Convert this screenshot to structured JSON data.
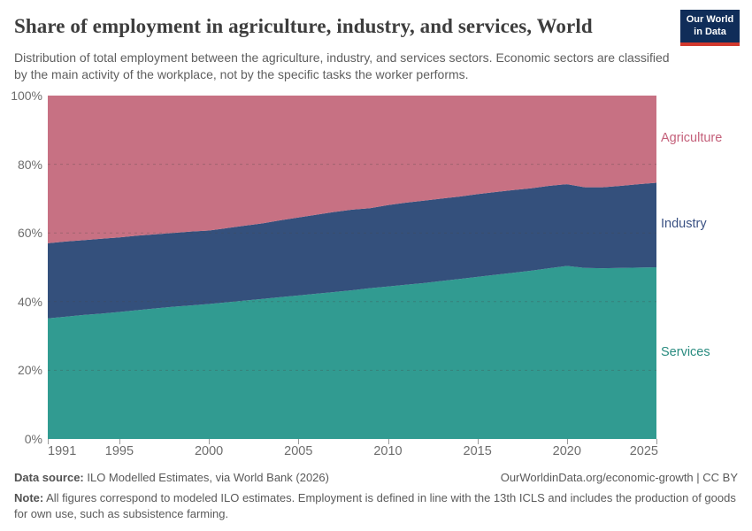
{
  "header": {
    "title": "Share of employment in agriculture, industry, and services, World",
    "subtitle": "Distribution of total employment between the agriculture, industry, and services sectors. Economic sectors are classified by the main activity of the workplace, not by the specific tasks the worker performs.",
    "logo": {
      "line1": "Our World",
      "line2": "in Data",
      "bg_color": "#102d59",
      "stripe_color": "#d2392e"
    }
  },
  "chart_data": {
    "type": "area",
    "stacked": true,
    "unit": "%",
    "title": "Share of employment in agriculture, industry, and services, World",
    "x": [
      1991,
      1992,
      1993,
      1994,
      1995,
      1996,
      1997,
      1998,
      1999,
      2000,
      2001,
      2002,
      2003,
      2004,
      2005,
      2006,
      2007,
      2008,
      2009,
      2010,
      2011,
      2012,
      2013,
      2014,
      2015,
      2016,
      2017,
      2018,
      2019,
      2020,
      2021,
      2022,
      2023,
      2024,
      2025
    ],
    "series": [
      {
        "name": "Services",
        "color": "#319b91",
        "label_color": "#2a8c80",
        "values": [
          35.1,
          35.6,
          36.1,
          36.5,
          37.0,
          37.5,
          38.0,
          38.5,
          38.9,
          39.3,
          39.8,
          40.3,
          40.8,
          41.3,
          41.8,
          42.3,
          42.8,
          43.3,
          43.9,
          44.4,
          44.9,
          45.4,
          46.0,
          46.6,
          47.2,
          47.8,
          48.4,
          49.0,
          49.7,
          50.4,
          49.8,
          49.7,
          49.8,
          49.9,
          50.0
        ]
      },
      {
        "name": "Industry",
        "color": "#34507c",
        "label_color": "#3a5183",
        "values": [
          21.9,
          21.9,
          21.8,
          21.8,
          21.7,
          21.7,
          21.6,
          21.5,
          21.5,
          21.4,
          21.6,
          21.8,
          22.0,
          22.4,
          22.7,
          23.0,
          23.3,
          23.5,
          23.3,
          23.7,
          23.9,
          24.0,
          24.0,
          24.0,
          24.1,
          24.1,
          24.1,
          24.0,
          24.0,
          23.8,
          23.5,
          23.6,
          23.9,
          24.3,
          24.6
        ]
      },
      {
        "name": "Agriculture",
        "color": "#c77183",
        "label_color": "#c4607a",
        "values": [
          43.0,
          42.5,
          42.1,
          41.7,
          41.3,
          40.8,
          40.4,
          40.0,
          39.6,
          39.3,
          38.6,
          37.9,
          37.2,
          36.3,
          35.5,
          34.7,
          33.9,
          33.2,
          32.8,
          31.9,
          31.2,
          30.6,
          30.0,
          29.4,
          28.7,
          28.1,
          27.5,
          27.0,
          26.3,
          25.8,
          26.7,
          26.7,
          26.3,
          25.8,
          25.4
        ]
      }
    ],
    "ylim": [
      0,
      100
    ],
    "y_ticks": [
      0,
      20,
      40,
      60,
      80,
      100
    ],
    "y_tick_labels": [
      "0%",
      "20%",
      "40%",
      "60%",
      "80%",
      "100%"
    ],
    "x_ticks": [
      1991,
      1995,
      2000,
      2005,
      2010,
      2015,
      2020,
      2025
    ],
    "x_tick_labels": [
      "1991",
      "1995",
      "2000",
      "2005",
      "2010",
      "2015",
      "2020",
      "2025"
    ],
    "grid": "horizontal dashed lines every 20%",
    "legend_position": "right"
  },
  "footer": {
    "source_label": "Data source:",
    "source_text": " ILO Modelled Estimates, via World Bank (2026)",
    "link_text": "OurWorldinData.org/economic-growth | CC BY",
    "note_label": "Note:",
    "note_text": " All figures correspond to modeled ILO estimates. Employment is defined in line with the 13th ICLS and includes the production of goods for own use, such as subsistence farming."
  }
}
